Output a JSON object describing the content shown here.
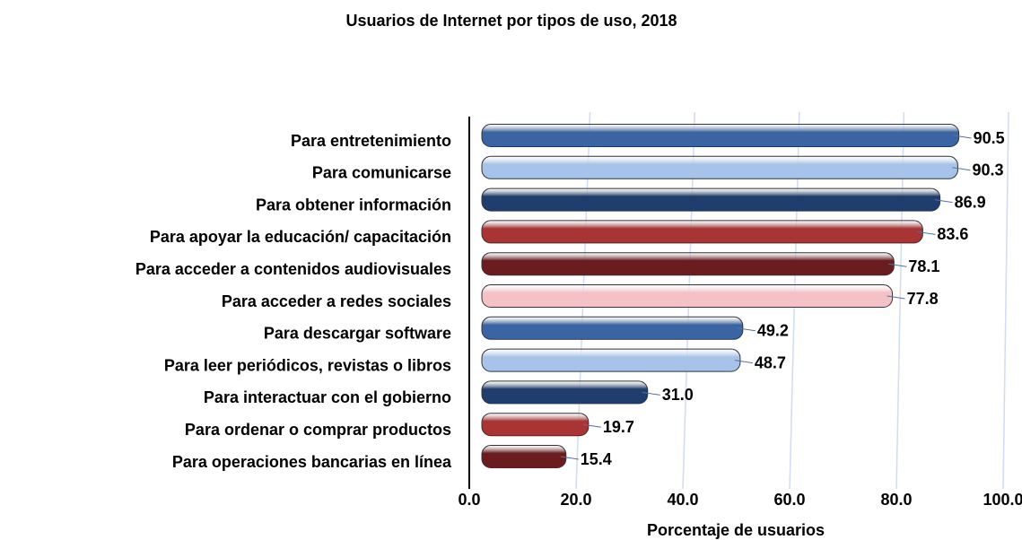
{
  "chart_data": {
    "type": "bar",
    "orientation": "horizontal",
    "title": "Usuarios de Internet por tipos de uso, 2018",
    "x_label": "Porcentaje de usuarios",
    "categories": [
      "Para entretenimiento",
      "Para comunicarse",
      "Para obtener información",
      "Para apoyar la educación/ capacitación",
      "Para acceder a contenidos audiovisuales",
      "Para acceder a redes sociales",
      "Para descargar software",
      "Para leer periódicos, revistas o libros",
      "Para interactuar con el gobierno",
      "Para ordenar o comprar productos",
      "Para operaciones bancarias en línea"
    ],
    "values": [
      90.5,
      90.3,
      86.9,
      83.6,
      78.1,
      77.8,
      49.2,
      48.7,
      31,
      19.7,
      15.4
    ],
    "value_labels": [
      "90.5",
      "90.3",
      "86.9",
      "83.6",
      "78.1",
      "77.8",
      "49.2",
      "48.7",
      "31.0",
      "19.7",
      "15.4"
    ],
    "colors": [
      "#3b65a2",
      "#a8c3ea",
      "#1f3e6d",
      "#a83434",
      "#6a1c1f",
      "#f3c1c6",
      "#3b65a2",
      "#a8c3ea",
      "#1f3e6d",
      "#a83434",
      "#6a1c1f"
    ],
    "xlim": [
      0,
      100
    ],
    "xticks": [
      {
        "value": 0,
        "label": "0.0"
      },
      {
        "value": 20,
        "label": "20.0"
      },
      {
        "value": 40,
        "label": "40.0"
      },
      {
        "value": 60,
        "label": "60.0"
      },
      {
        "value": 80,
        "label": "80.0"
      },
      {
        "value": 100,
        "label": "100.0"
      }
    ],
    "grid": true
  }
}
